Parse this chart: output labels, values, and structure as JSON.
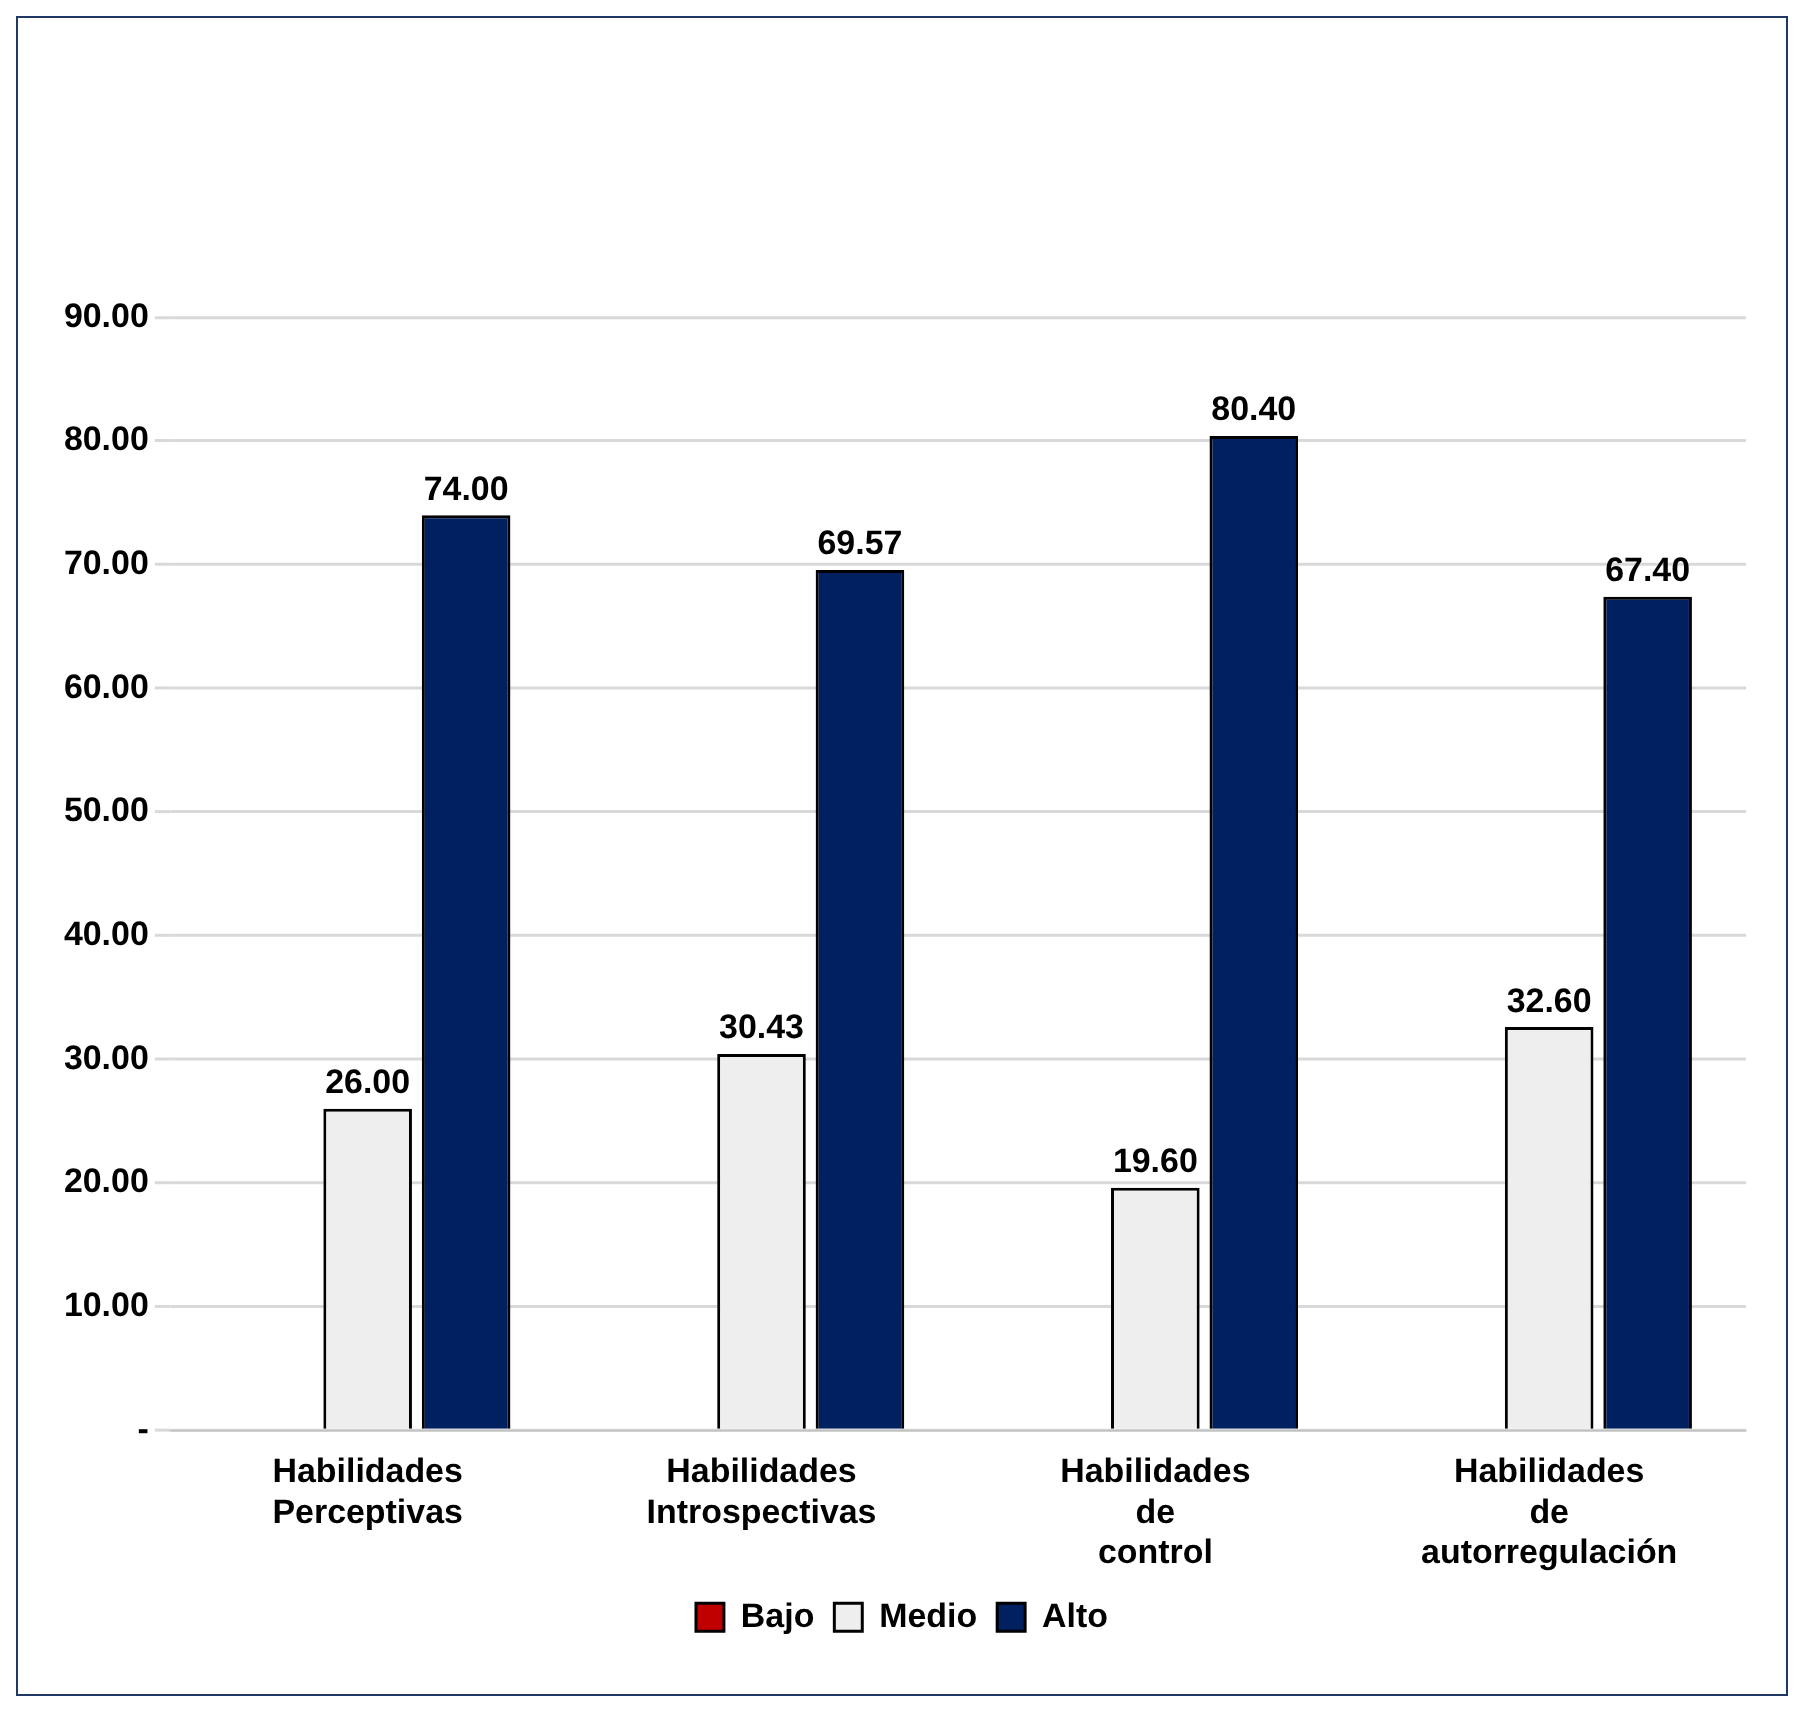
{
  "chart_data": {
    "type": "bar",
    "categories": [
      "Habilidades Perceptivas",
      "Habilidades Introspectivas",
      "Habilidades de control",
      "Habilidades de autorregulación"
    ],
    "series": [
      {
        "name": "Bajo",
        "color": "#c00000",
        "values": [
          0,
          0,
          0,
          0
        ],
        "value_labels": [
          null,
          null,
          null,
          null
        ]
      },
      {
        "name": "Medio",
        "color": "#eeeeee",
        "values": [
          26.0,
          30.43,
          19.6,
          32.6
        ],
        "value_labels": [
          "26.00",
          "30.43",
          "19.60",
          "32.60"
        ]
      },
      {
        "name": "Alto",
        "color": "#002060",
        "values": [
          74.0,
          69.57,
          80.4,
          67.4
        ],
        "value_labels": [
          "74.00",
          "69.57",
          "80.40",
          "67.40"
        ]
      }
    ],
    "ylim": [
      0,
      90
    ],
    "yticks": [
      {
        "value": 0,
        "label": "-"
      },
      {
        "value": 10,
        "label": "10.00"
      },
      {
        "value": 20,
        "label": "20.00"
      },
      {
        "value": 30,
        "label": "30.00"
      },
      {
        "value": 40,
        "label": "40.00"
      },
      {
        "value": 50,
        "label": "50.00"
      },
      {
        "value": 60,
        "label": "60.00"
      },
      {
        "value": 70,
        "label": "70.00"
      },
      {
        "value": 80,
        "label": "80.00"
      },
      {
        "value": 90,
        "label": "90.00"
      }
    ],
    "grid": "y",
    "legend": "bottom"
  }
}
